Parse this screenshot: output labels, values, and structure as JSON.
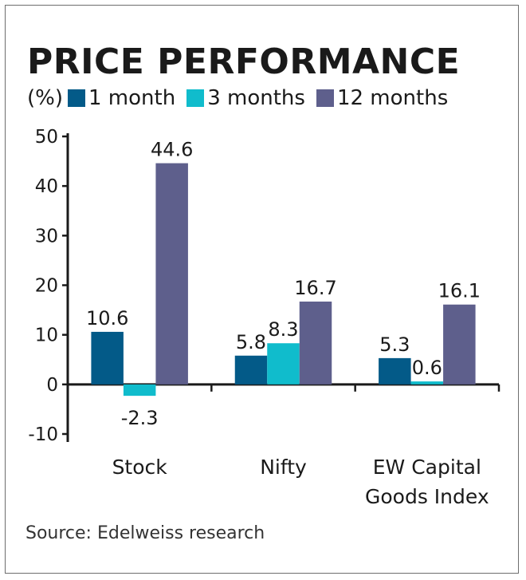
{
  "chart_data": {
    "type": "bar",
    "title": "PRICE PERFORMANCE",
    "unit_label": "(%)",
    "categories": [
      [
        "Stock"
      ],
      [
        "Nifty"
      ],
      [
        "EW Capital",
        "Goods Index"
      ]
    ],
    "series": [
      {
        "name": "1 month",
        "color": "#035a88",
        "values": [
          10.6,
          5.8,
          5.3
        ],
        "labels": [
          "10.6",
          "5.8",
          "5.3"
        ]
      },
      {
        "name": "3 months",
        "color": "#10bccc",
        "values": [
          -2.3,
          8.3,
          0.6
        ],
        "labels": [
          "-2.3",
          "8.3",
          "0.6"
        ]
      },
      {
        "name": "12 months",
        "color": "#5e5f8c",
        "values": [
          44.6,
          16.7,
          16.1
        ],
        "labels": [
          "44.6",
          "16.7",
          "16.1"
        ]
      }
    ],
    "ylim": [
      -10,
      50
    ],
    "yticks": [
      50,
      40,
      30,
      20,
      10,
      0,
      -10
    ],
    "ytick_labels": [
      "50",
      "40",
      "30",
      "20",
      "10",
      "0",
      "-10"
    ],
    "grid": false,
    "legend_position": "top",
    "xlabel": "",
    "ylabel": "(%)"
  },
  "source": "Source: Edelweiss research"
}
